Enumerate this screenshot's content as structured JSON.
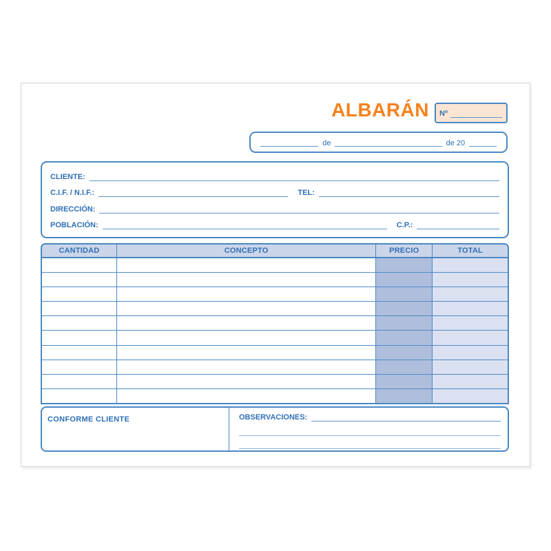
{
  "form": {
    "title": "ALBARÁN",
    "number_label": "Nº",
    "date_connector_1": "de",
    "date_connector_2": "de 20"
  },
  "client": {
    "cliente_label": "CLIENTE:",
    "cif_label": "C.I.F. / N.I.F.:",
    "tel_label": "TEL:",
    "direccion_label": "DIRECCIÓN:",
    "poblacion_label": "POBLACIÓN:",
    "cp_label": "C.P.:"
  },
  "table": {
    "columns": [
      "CANTIDAD",
      "CONCEPTO",
      "PRECIO",
      "TOTAL"
    ],
    "rows": [
      {
        "cantidad": "",
        "concepto": "",
        "precio": "",
        "total": ""
      },
      {
        "cantidad": "",
        "concepto": "",
        "precio": "",
        "total": ""
      },
      {
        "cantidad": "",
        "concepto": "",
        "precio": "",
        "total": ""
      },
      {
        "cantidad": "",
        "concepto": "",
        "precio": "",
        "total": ""
      },
      {
        "cantidad": "",
        "concepto": "",
        "precio": "",
        "total": ""
      },
      {
        "cantidad": "",
        "concepto": "",
        "precio": "",
        "total": ""
      },
      {
        "cantidad": "",
        "concepto": "",
        "precio": "",
        "total": ""
      },
      {
        "cantidad": "",
        "concepto": "",
        "precio": "",
        "total": ""
      },
      {
        "cantidad": "",
        "concepto": "",
        "precio": "",
        "total": ""
      },
      {
        "cantidad": "",
        "concepto": "",
        "precio": "",
        "total": ""
      }
    ]
  },
  "footer": {
    "conforme_label": "CONFORME CLIENTE",
    "observaciones_label": "OBSERVACIONES:"
  },
  "colors": {
    "accent_orange": "#F5821E",
    "number_box_fill": "#FBE5D2",
    "form_blue": "#4A87C4",
    "text_blue": "#2E6FB6",
    "header_fill": "#CBD5E9",
    "precio_fill": "#AFBEDC",
    "total_fill": "#DBE1F0"
  }
}
